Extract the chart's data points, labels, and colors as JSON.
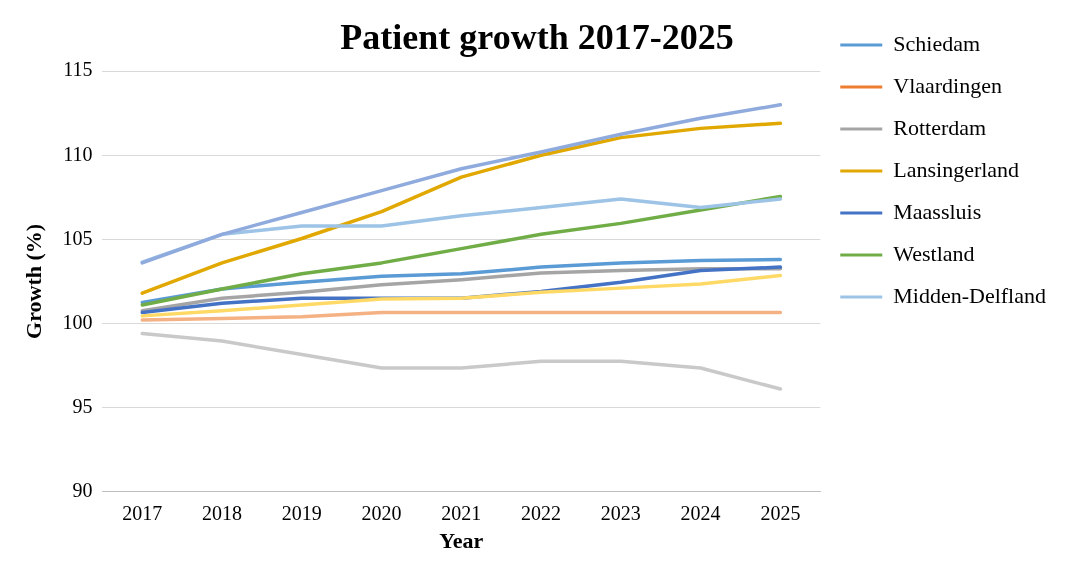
{
  "chart_data": {
    "type": "line",
    "title": "Patient growth 2017-2025",
    "xlabel": "Year",
    "ylabel": "Growth (%)",
    "categories": [
      "2017",
      "2018",
      "2019",
      "2020",
      "2021",
      "2022",
      "2023",
      "2024",
      "2025"
    ],
    "ylim": [
      90,
      115
    ],
    "yticks": [
      90,
      95,
      100,
      105,
      110,
      115
    ],
    "grid": "y",
    "legend": "right",
    "marker": "none",
    "line_style": "solid",
    "series": [
      {
        "name": "Schiedam",
        "color": "#5b9bd5",
        "values": [
          101.25,
          102.05,
          102.45,
          102.8,
          102.95,
          103.35,
          103.6,
          103.75,
          103.8
        ]
      },
      {
        "name": "Vlaardingen",
        "color": "#ed7d31",
        "values": [
          null,
          null,
          null,
          null,
          null,
          null,
          null,
          null,
          null
        ]
      },
      {
        "name": "Rotterdam",
        "color": "#a5a5a5",
        "values": [
          100.75,
          101.5,
          101.85,
          102.3,
          102.6,
          103.0,
          103.15,
          103.25,
          103.25
        ]
      },
      {
        "name": "Lansingerland",
        "color": "#e0a800",
        "values": [
          101.8,
          103.6,
          105.05,
          106.65,
          108.7,
          110.0,
          111.05,
          111.6,
          111.9
        ]
      },
      {
        "name": "Maassluis",
        "color": "#4472c4",
        "values": [
          100.65,
          101.2,
          101.5,
          101.5,
          101.5,
          101.9,
          102.45,
          103.15,
          103.35
        ]
      },
      {
        "name": "Westland",
        "color": "#70ad47",
        "values": [
          101.1,
          102.05,
          102.95,
          103.6,
          104.45,
          105.3,
          105.95,
          106.75,
          107.55
        ]
      },
      {
        "name": "Midden-Delfland",
        "color": "#9dc3e6",
        "values": [
          103.65,
          105.3,
          105.8,
          105.8,
          106.4,
          106.9,
          107.4,
          106.9,
          107.4
        ]
      },
      {
        "color": "#f4b183",
        "values": [
          100.2,
          100.3,
          100.4,
          100.65,
          100.65,
          100.65,
          100.65,
          100.65,
          100.65
        ]
      },
      {
        "color": "#c9c9c9",
        "values": [
          99.4,
          98.95,
          98.15,
          97.35,
          97.35,
          97.75,
          97.75,
          97.35,
          96.1
        ]
      },
      {
        "color": "#ffd966",
        "values": [
          100.45,
          100.75,
          101.1,
          101.45,
          101.5,
          101.85,
          102.1,
          102.35,
          102.85
        ]
      },
      {
        "color": "#8faadc",
        "values": [
          103.6,
          105.3,
          106.6,
          107.9,
          109.2,
          110.2,
          111.25,
          112.2,
          113.0
        ]
      }
    ]
  }
}
